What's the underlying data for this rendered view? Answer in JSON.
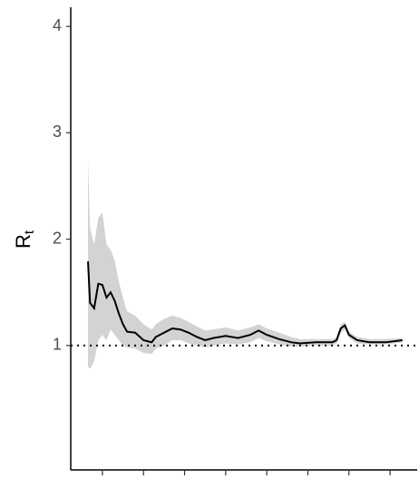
{
  "chart_data": {
    "type": "line",
    "ylabel": "R",
    "ylabel_sub": "t",
    "x": [
      6.5,
      7,
      8,
      9,
      10,
      11,
      12,
      13,
      14,
      15,
      16,
      18,
      20,
      22,
      23,
      25,
      27,
      29,
      31,
      33,
      35,
      37,
      40,
      43,
      46,
      48,
      50,
      53,
      56,
      58,
      62,
      66,
      67,
      68,
      69,
      70,
      72,
      75,
      79,
      83
    ],
    "values": [
      1.79,
      1.4,
      1.35,
      1.58,
      1.57,
      1.45,
      1.5,
      1.42,
      1.3,
      1.2,
      1.13,
      1.12,
      1.05,
      1.03,
      1.08,
      1.12,
      1.16,
      1.15,
      1.12,
      1.08,
      1.05,
      1.07,
      1.09,
      1.07,
      1.1,
      1.14,
      1.1,
      1.06,
      1.03,
      1.02,
      1.03,
      1.03,
      1.05,
      1.16,
      1.19,
      1.1,
      1.05,
      1.03,
      1.03,
      1.05
    ],
    "lower": [
      0.8,
      0.78,
      0.85,
      1.05,
      1.1,
      1.05,
      1.15,
      1.1,
      1.05,
      1.0,
      0.98,
      0.97,
      0.93,
      0.92,
      0.97,
      1.0,
      1.05,
      1.05,
      1.02,
      1.0,
      0.98,
      1.0,
      1.02,
      1.01,
      1.03,
      1.07,
      1.04,
      1.01,
      0.99,
      0.99,
      1.0,
      1.0,
      1.02,
      1.12,
      1.15,
      1.07,
      1.02,
      1.01,
      1.01,
      1.03
    ],
    "upper": [
      2.75,
      2.1,
      1.95,
      2.2,
      2.25,
      1.95,
      1.9,
      1.8,
      1.6,
      1.45,
      1.32,
      1.28,
      1.2,
      1.15,
      1.2,
      1.25,
      1.28,
      1.26,
      1.22,
      1.18,
      1.14,
      1.15,
      1.17,
      1.14,
      1.17,
      1.2,
      1.16,
      1.12,
      1.08,
      1.06,
      1.06,
      1.06,
      1.08,
      1.2,
      1.22,
      1.13,
      1.08,
      1.06,
      1.06,
      1.07
    ],
    "line_color": "#000000",
    "band_color": "#d3d3d3",
    "hline": 1,
    "xlim": [
      2.3,
      86.6
    ],
    "xticks": [
      10,
      20,
      30,
      40,
      50,
      60,
      70,
      80
    ],
    "ylim": [
      -0.17,
      4.18
    ],
    "yticks": [
      1,
      2,
      3,
      4
    ]
  }
}
